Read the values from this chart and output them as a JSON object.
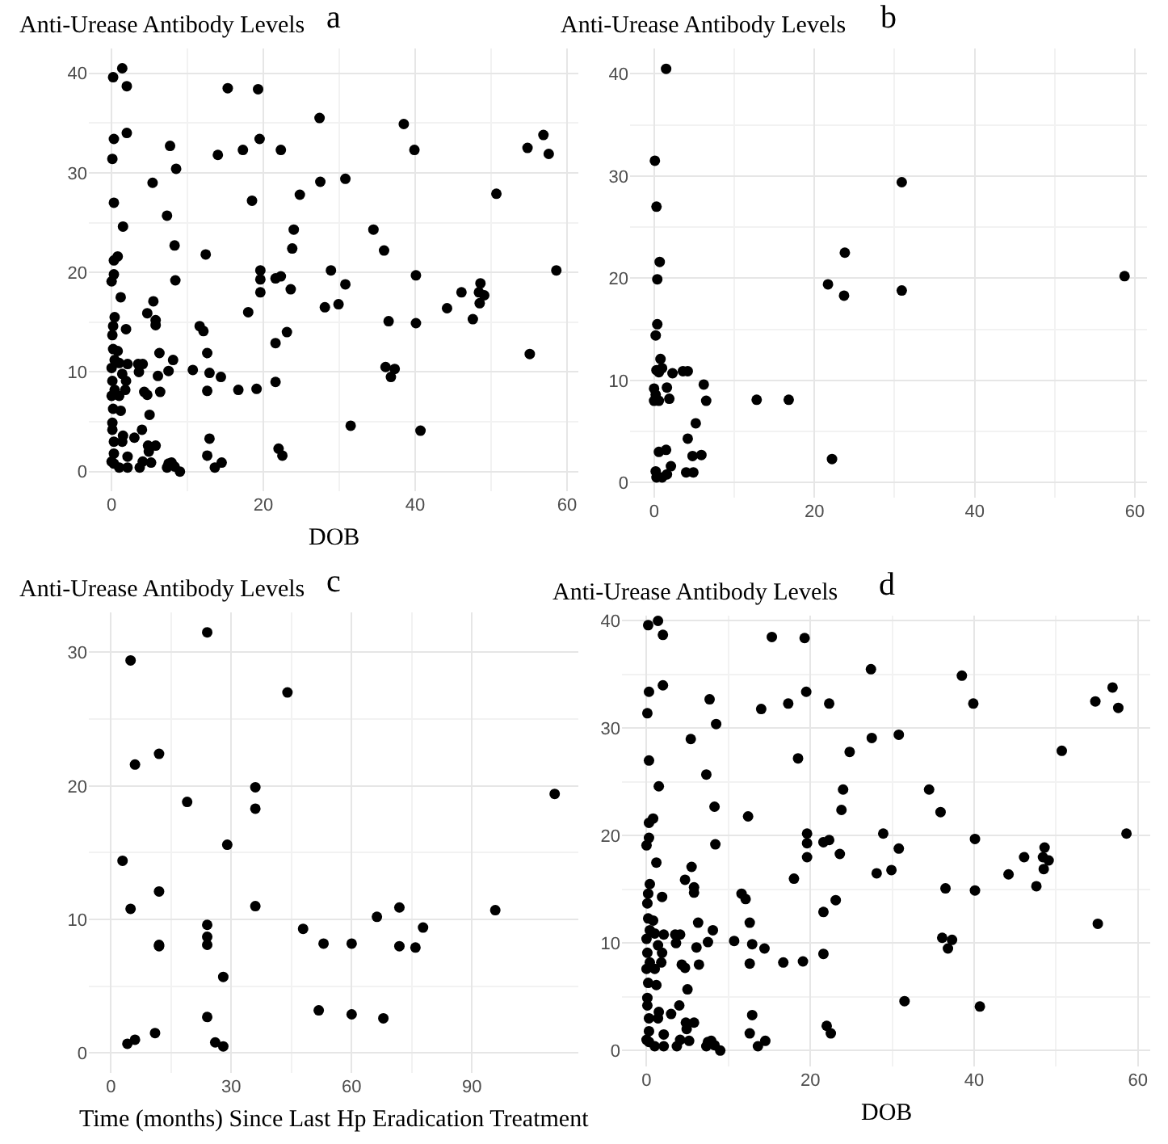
{
  "chart_data": [
    {
      "type": "scatter",
      "title": "a",
      "ylabel": "Anti-Urease Antibody Levels",
      "xlabel": "DOB",
      "xlim": [
        -3,
        61.5
      ],
      "ylim": [
        -2,
        42.5
      ],
      "xticks": [
        0,
        20,
        40,
        60
      ],
      "yticks": [
        0,
        10,
        20,
        30,
        40
      ],
      "grid": true,
      "marker": "circle",
      "series": [
        {
          "color": "#000000",
          "x": [
            0.2,
            1.4,
            2.0,
            0.3,
            2.0,
            0.1,
            0.3,
            1.5,
            0.8,
            0.3,
            0.3,
            0,
            1.2,
            0.4,
            0.2,
            1.9,
            0.1,
            0.2,
            0.8,
            0.4,
            1.0,
            2.1,
            0,
            1.4,
            1.9,
            0.1,
            0.4,
            1.8,
            0,
            1.0,
            0.2,
            1.2,
            0.1,
            0.1,
            1.5,
            0.3,
            1.4,
            2.1,
            0.3,
            0.3,
            1.0,
            2.1,
            0,
            5.4,
            7.7,
            8.5,
            7.3,
            8.3,
            8.4,
            5.5,
            4.7,
            5.8,
            5.8,
            3.5,
            4.1,
            3.6,
            6.3,
            6.1,
            7.5,
            8.1,
            4.3,
            4.7,
            6.4,
            5.0,
            4.0,
            3.0,
            4.8,
            5.8,
            4.9,
            4.1,
            5.2,
            3.7,
            7.5,
            7.9,
            8.3,
            9.0,
            7.3,
            10.7,
            11.6,
            12.1,
            12.4,
            12.6,
            12.9,
            12.6,
            12.9,
            12.6,
            13.6,
            14.5,
            14.0,
            14.4,
            15.3,
            16.7,
            17.3,
            18.0,
            18.5,
            19.3,
            19.5,
            19.6,
            19.6,
            19.6,
            19.1,
            21.6,
            21.6,
            21.6,
            22.3,
            22.3,
            22.0,
            22.5,
            23.1,
            23.6,
            23.8,
            24.0,
            24.8,
            27.4,
            27.5,
            28.1,
            28.9,
            29.9,
            30.8,
            30.8,
            31.5,
            34.5,
            35.9,
            36.1,
            36.5,
            36.8,
            37.3,
            38.5,
            39.9,
            40.1,
            40.1,
            40.7,
            44.2,
            46.1,
            47.6,
            48.6,
            48.4,
            48.5,
            49.1,
            50.7,
            54.8,
            55.1,
            56.9,
            57.6,
            58.6
          ],
          "values": [
            39.6,
            40.5,
            38.7,
            33.4,
            34.0,
            31.4,
            27.0,
            24.6,
            21.6,
            21.2,
            19.8,
            19.1,
            17.5,
            15.5,
            14.6,
            14.3,
            13.7,
            12.3,
            12.1,
            11.2,
            10.9,
            10.8,
            10.4,
            9.8,
            9.1,
            9.1,
            8.2,
            8.2,
            7.6,
            7.6,
            6.3,
            6.1,
            4.9,
            4.2,
            3.6,
            3.0,
            3.0,
            1.5,
            1.8,
            0.8,
            0.4,
            0.4,
            1.0,
            29.0,
            32.7,
            30.4,
            25.7,
            22.7,
            19.2,
            17.1,
            15.9,
            15.2,
            14.7,
            10.8,
            10.8,
            10.0,
            11.9,
            9.6,
            10.1,
            11.2,
            8.0,
            7.7,
            8.0,
            5.7,
            4.2,
            3.4,
            2.6,
            2.6,
            2.0,
            1.0,
            0.9,
            0.4,
            0.8,
            0.9,
            0.5,
            0,
            0.4,
            10.2,
            14.6,
            14.1,
            21.8,
            11.9,
            9.9,
            8.1,
            3.3,
            1.6,
            0.4,
            0.9,
            31.8,
            9.5,
            38.5,
            8.2,
            32.3,
            16.0,
            27.2,
            38.4,
            33.4,
            19.3,
            20.2,
            18.0,
            8.3,
            12.9,
            9.0,
            19.4,
            19.6,
            32.3,
            2.3,
            1.6,
            14.0,
            18.3,
            22.4,
            24.3,
            27.8,
            35.5,
            29.1,
            16.5,
            20.2,
            16.8,
            29.4,
            18.8,
            4.6,
            24.3,
            22.2,
            10.5,
            15.1,
            9.5,
            10.3,
            34.9,
            32.3,
            19.7,
            14.9,
            4.1,
            16.4,
            18.0,
            15.3,
            18.9,
            18.0,
            16.9,
            17.7,
            27.9,
            32.5,
            11.8,
            33.8,
            31.9,
            20.2
          ]
        }
      ]
    },
    {
      "type": "scatter",
      "title": "b",
      "ylabel": "Anti-Urease Antibody Levels",
      "xlim": [
        -3,
        61.5
      ],
      "ylim": [
        -1.5,
        42.5
      ],
      "xticks": [
        0,
        20,
        40,
        60
      ],
      "yticks": [
        0,
        10,
        20,
        30,
        40
      ],
      "grid": true,
      "marker": "circle",
      "series": [
        {
          "color": "#000000",
          "x": [
            1.5,
            0.1,
            0.3,
            0.7,
            0.4,
            0.4,
            0.2,
            0.8,
            0.3,
            1.0,
            0.6,
            2.3,
            3.6,
            4.2,
            6.2,
            1.6,
            0,
            0.2,
            0,
            0.6,
            1.9,
            6.5,
            12.8,
            16.8,
            5.2,
            4.2,
            0.6,
            1.5,
            4.8,
            5.9,
            2.1,
            4.0,
            4.9,
            0.2,
            0.3,
            1.6,
            1.0,
            21.7,
            23.7,
            23.8,
            22.2,
            30.9,
            30.9,
            58.7
          ],
          "values": [
            40.5,
            31.5,
            27.0,
            21.6,
            19.9,
            15.5,
            14.4,
            12.1,
            11.0,
            11.2,
            10.8,
            10.7,
            10.9,
            10.9,
            9.6,
            9.3,
            9.2,
            8.6,
            8.0,
            8.0,
            8.2,
            8.0,
            8.1,
            8.1,
            5.8,
            4.3,
            3.0,
            3.2,
            2.6,
            2.7,
            1.6,
            1.0,
            1.0,
            1.1,
            0.5,
            0.8,
            0.5,
            19.4,
            18.3,
            22.5,
            2.3,
            29.4,
            18.8,
            20.2
          ]
        }
      ]
    },
    {
      "type": "scatter",
      "title": "c",
      "ylabel": "Anti-Urease Antibody Levels",
      "xlabel": "Time (months) Since Last Hp Eradication Treatment",
      "xlim": [
        -5.5,
        116.5
      ],
      "ylim": [
        -1.5,
        33
      ],
      "xticks": [
        0,
        30,
        60,
        90
      ],
      "yticks": [
        0,
        10,
        20,
        30
      ],
      "grid": true,
      "marker": "circle",
      "series": [
        {
          "color": "#000000",
          "x": [
            24.0,
            4.9,
            44.0,
            12.0,
            6.0,
            36.0,
            19.0,
            36.0,
            110.6,
            29.0,
            2.9,
            12.0,
            4.9,
            36.0,
            24.0,
            24.0,
            24.0,
            12.0,
            12.0,
            47.9,
            53.0,
            60.0,
            66.3,
            71.9,
            71.9,
            75.9,
            77.8,
            95.8,
            28.0,
            24.0,
            51.8,
            60.0,
            67.9,
            4.1,
            6.0,
            11.0,
            26.0,
            28.0
          ],
          "values": [
            31.5,
            29.4,
            27.0,
            22.4,
            21.6,
            19.9,
            18.8,
            18.3,
            19.4,
            15.6,
            14.4,
            12.1,
            10.8,
            11.0,
            9.6,
            8.7,
            8.1,
            8.1,
            8.0,
            9.3,
            8.2,
            8.2,
            10.2,
            10.9,
            8.0,
            7.9,
            9.4,
            10.7,
            5.7,
            2.7,
            3.2,
            2.9,
            2.6,
            0.7,
            1.0,
            1.5,
            0.8,
            0.5
          ]
        }
      ]
    },
    {
      "type": "scatter",
      "title": "d",
      "ylabel": "Anti-Urease Antibody Levels",
      "xlabel": "DOB",
      "xlim": [
        -3,
        61.5
      ],
      "ylim": [
        -1.5,
        40.5
      ],
      "xticks": [
        0,
        20,
        40,
        60
      ],
      "yticks": [
        0,
        10,
        20,
        30,
        40
      ],
      "grid": true,
      "marker": "circle",
      "series": [
        {
          "color": "#000000",
          "x": [
            0.2,
            1.4,
            2.0,
            0.3,
            2.0,
            0.1,
            0.3,
            1.5,
            0.8,
            0.3,
            0.3,
            0,
            1.2,
            0.4,
            0.2,
            1.9,
            0.1,
            0.2,
            0.8,
            0.4,
            1.0,
            2.1,
            0,
            1.4,
            1.9,
            0.1,
            0.4,
            1.8,
            0,
            1.0,
            0.2,
            1.2,
            0.1,
            0.1,
            1.5,
            0.3,
            1.4,
            2.1,
            0.3,
            0.3,
            1.0,
            2.1,
            0,
            5.4,
            7.7,
            8.5,
            7.3,
            8.3,
            8.4,
            5.5,
            4.7,
            5.8,
            5.8,
            3.5,
            4.1,
            3.6,
            6.3,
            6.1,
            7.5,
            8.1,
            4.3,
            4.7,
            6.4,
            5.0,
            4.0,
            3.0,
            4.8,
            5.8,
            4.9,
            4.1,
            5.2,
            3.7,
            7.5,
            7.9,
            8.3,
            9.0,
            7.3,
            10.7,
            11.6,
            12.1,
            12.4,
            12.6,
            12.9,
            12.6,
            12.9,
            12.6,
            13.6,
            14.5,
            14.0,
            14.4,
            15.3,
            16.7,
            17.3,
            18.0,
            18.5,
            19.3,
            19.5,
            19.6,
            19.6,
            19.6,
            19.1,
            21.6,
            21.6,
            21.6,
            22.3,
            22.3,
            22.0,
            22.5,
            23.1,
            23.6,
            23.8,
            24.0,
            24.8,
            27.4,
            27.5,
            28.1,
            28.9,
            29.9,
            30.8,
            30.8,
            31.5,
            34.5,
            35.9,
            36.1,
            36.5,
            36.8,
            37.3,
            38.5,
            39.9,
            40.1,
            40.1,
            40.7,
            44.2,
            46.1,
            47.6,
            48.6,
            48.4,
            48.5,
            49.1,
            50.7,
            54.8,
            55.1,
            56.9,
            57.6,
            58.6
          ],
          "values": [
            39.6,
            40.0,
            38.7,
            33.4,
            34.0,
            31.4,
            27.0,
            24.6,
            21.6,
            21.2,
            19.8,
            19.1,
            17.5,
            15.5,
            14.6,
            14.3,
            13.7,
            12.3,
            12.1,
            11.2,
            10.9,
            10.8,
            10.4,
            9.8,
            9.1,
            9.1,
            8.2,
            8.2,
            7.6,
            7.6,
            6.3,
            6.1,
            4.9,
            4.2,
            3.6,
            3.0,
            3.0,
            1.5,
            1.8,
            0.8,
            0.4,
            0.4,
            1.0,
            29.0,
            32.7,
            30.4,
            25.7,
            22.7,
            19.2,
            17.1,
            15.9,
            15.2,
            14.7,
            10.8,
            10.8,
            10.0,
            11.9,
            9.6,
            10.1,
            11.2,
            8.0,
            7.7,
            8.0,
            5.7,
            4.2,
            3.4,
            2.6,
            2.6,
            2.0,
            1.0,
            0.9,
            0.4,
            0.8,
            0.9,
            0.5,
            0,
            0.4,
            10.2,
            14.6,
            14.1,
            21.8,
            11.9,
            9.9,
            8.1,
            3.3,
            1.6,
            0.4,
            0.9,
            31.8,
            9.5,
            38.5,
            8.2,
            32.3,
            16.0,
            27.2,
            38.4,
            33.4,
            19.3,
            20.2,
            18.0,
            8.3,
            12.9,
            9.0,
            19.4,
            19.6,
            32.3,
            2.3,
            1.6,
            14.0,
            18.3,
            22.4,
            24.3,
            27.8,
            35.5,
            29.1,
            16.5,
            20.2,
            16.8,
            29.4,
            18.8,
            4.6,
            24.3,
            22.2,
            10.5,
            15.1,
            9.5,
            10.3,
            34.9,
            32.3,
            19.7,
            14.9,
            4.1,
            16.4,
            18.0,
            15.3,
            18.9,
            18.0,
            16.9,
            17.7,
            27.9,
            32.5,
            11.8,
            33.8,
            31.9,
            20.2
          ]
        }
      ]
    }
  ]
}
